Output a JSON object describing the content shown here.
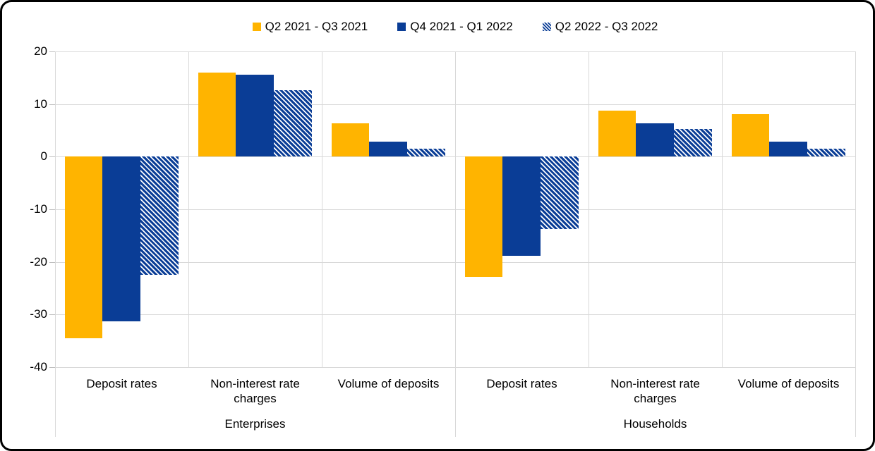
{
  "chart_data": {
    "type": "bar",
    "title": "",
    "legend_position": "top",
    "grid": true,
    "y_axis": {
      "min": -40,
      "max": 20,
      "step": 10,
      "ticks": [
        20,
        10,
        0,
        -10,
        -20,
        -30,
        -40
      ]
    },
    "groups": [
      {
        "label": "Enterprises",
        "categories": [
          "Deposit rates",
          "Non-interest rate charges",
          "Volume of deposits"
        ]
      },
      {
        "label": "Households",
        "categories": [
          "Deposit rates",
          "Non-interest rate charges",
          "Volume of deposits"
        ]
      }
    ],
    "categories_flat": [
      "Deposit rates",
      "Non-interest rate charges",
      "Volume of deposits",
      "Deposit rates",
      "Non-interest rate charges",
      "Volume of deposits"
    ],
    "series": [
      {
        "name": "Q2 2021 - Q3 2021",
        "fill": "solid",
        "color": "#FFB400",
        "values": [
          -34.5,
          16.0,
          6.3,
          -22.8,
          8.7,
          8.1
        ]
      },
      {
        "name": "Q4 2021 - Q1 2022",
        "fill": "solid",
        "color": "#0A3D96",
        "values": [
          -31.3,
          15.6,
          2.8,
          -18.8,
          6.4,
          2.9
        ]
      },
      {
        "name": "Q2 2022 - Q3 2022",
        "fill": "hatched-diagonal",
        "color": "#0A3D96",
        "values": [
          -22.5,
          12.7,
          1.5,
          -13.7,
          5.3,
          1.5
        ]
      }
    ],
    "colors": {
      "gridline": "#d9d9d9",
      "axis": "#bfbfbf",
      "text": "#000000",
      "background": "#ffffff"
    }
  }
}
